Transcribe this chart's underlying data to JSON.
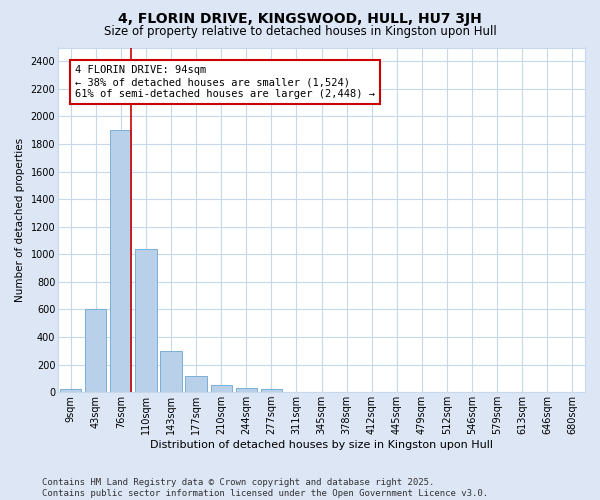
{
  "title": "4, FLORIN DRIVE, KINGSWOOD, HULL, HU7 3JH",
  "subtitle": "Size of property relative to detached houses in Kingston upon Hull",
  "xlabel": "Distribution of detached houses by size in Kingston upon Hull",
  "ylabel": "Number of detached properties",
  "categories": [
    "9sqm",
    "43sqm",
    "76sqm",
    "110sqm",
    "143sqm",
    "177sqm",
    "210sqm",
    "244sqm",
    "277sqm",
    "311sqm",
    "345sqm",
    "378sqm",
    "412sqm",
    "445sqm",
    "479sqm",
    "512sqm",
    "546sqm",
    "579sqm",
    "613sqm",
    "646sqm",
    "680sqm"
  ],
  "values": [
    20,
    600,
    1900,
    1040,
    295,
    115,
    50,
    30,
    20,
    0,
    0,
    0,
    0,
    0,
    0,
    0,
    0,
    0,
    0,
    0,
    0
  ],
  "bar_color": "#b8d0ea",
  "bar_edge_color": "#7aafd4",
  "vline_color": "#cc0000",
  "annotation_text": "4 FLORIN DRIVE: 94sqm\n← 38% of detached houses are smaller (1,524)\n61% of semi-detached houses are larger (2,448) →",
  "annotation_box_color": "#ffffff",
  "annotation_box_edge": "#cc0000",
  "ylim": [
    0,
    2500
  ],
  "yticks": [
    0,
    200,
    400,
    600,
    800,
    1000,
    1200,
    1400,
    1600,
    1800,
    2000,
    2200,
    2400
  ],
  "background_color": "#dce6f5",
  "plot_background": "#ffffff",
  "footer_text": "Contains HM Land Registry data © Crown copyright and database right 2025.\nContains public sector information licensed under the Open Government Licence v3.0.",
  "title_fontsize": 10,
  "subtitle_fontsize": 8.5,
  "xlabel_fontsize": 8,
  "ylabel_fontsize": 7.5,
  "tick_fontsize": 7,
  "footer_fontsize": 6.5
}
